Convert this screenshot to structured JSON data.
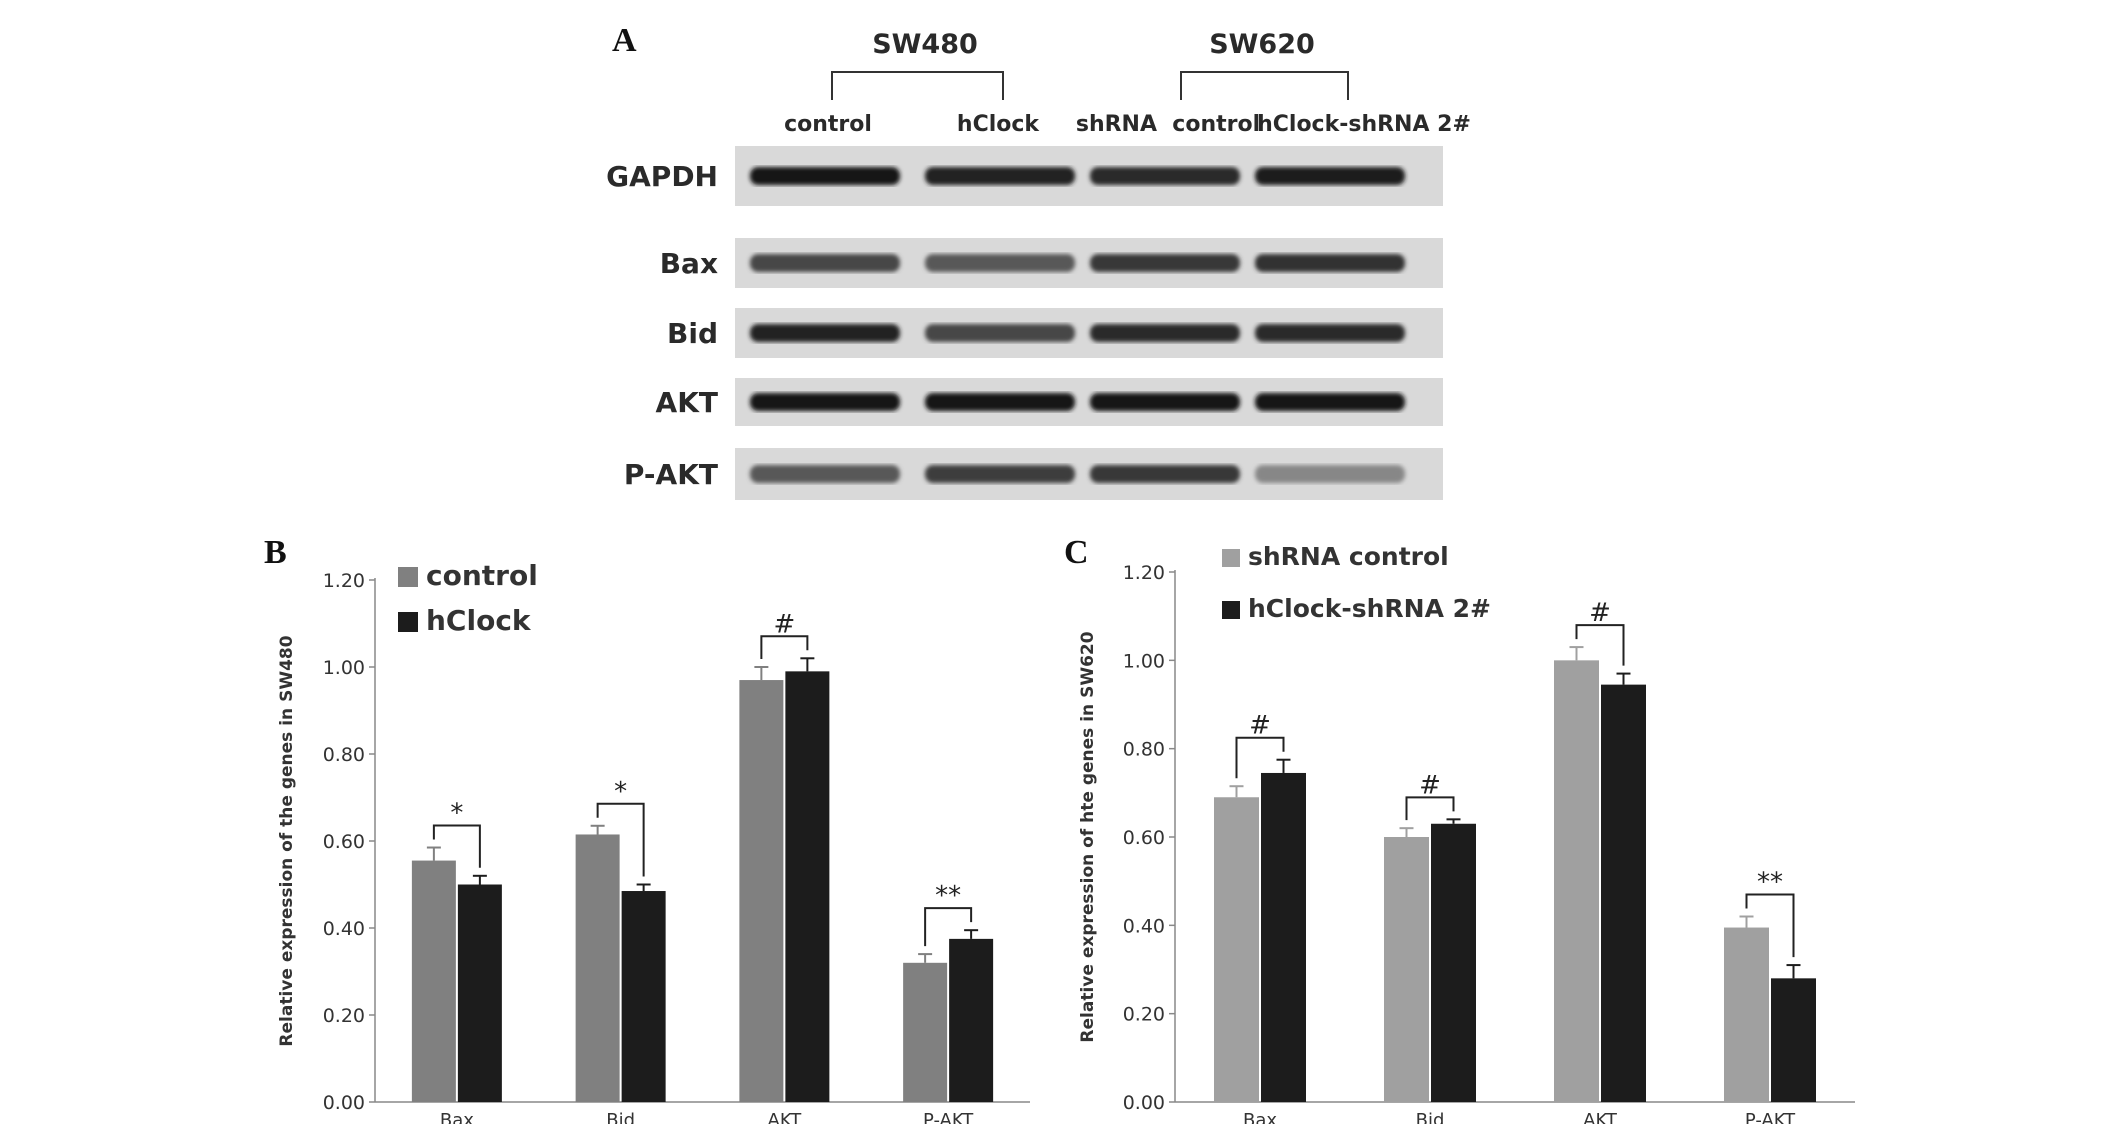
{
  "panel_letters": {
    "a": "A",
    "b": "B",
    "c": "C"
  },
  "blot": {
    "groups": [
      "SW480",
      "SW620"
    ],
    "lanes": [
      "control",
      "hClock",
      "shRNA  control",
      "hClock-shRNA 2#"
    ],
    "rows": [
      {
        "label": "GAPDH",
        "intensity": [
          0.95,
          0.9,
          0.85,
          0.92
        ]
      },
      {
        "label": "Bax",
        "intensity": [
          0.7,
          0.6,
          0.78,
          0.82
        ]
      },
      {
        "label": "Bid",
        "intensity": [
          0.9,
          0.7,
          0.85,
          0.85
        ]
      },
      {
        "label": "AKT",
        "intensity": [
          0.97,
          0.97,
          0.97,
          0.97
        ]
      },
      {
        "label": "P-AKT",
        "intensity": [
          0.6,
          0.75,
          0.78,
          0.35
        ]
      }
    ]
  },
  "chart_data": [
    {
      "type": "bar",
      "categories": [
        "Bax",
        "Bid",
        "AKT",
        "P-AKT"
      ],
      "series": [
        {
          "name": "control",
          "values": [
            0.555,
            0.615,
            0.97,
            0.32
          ],
          "errors": [
            0.03,
            0.02,
            0.03,
            0.02
          ],
          "color": "#808080"
        },
        {
          "name": "hClock",
          "values": [
            0.5,
            0.485,
            0.99,
            0.375
          ],
          "errors": [
            0.02,
            0.015,
            0.03,
            0.02
          ],
          "color": "#1c1c1c"
        }
      ],
      "ylabel": "Relative expression of the genes in SW480",
      "ylim": [
        0,
        1.2
      ],
      "yticks": [
        "0.00",
        "0.20",
        "0.40",
        "0.60",
        "0.80",
        "1.00",
        "1.20"
      ],
      "significance": [
        "*",
        "*",
        "#",
        "**"
      ],
      "legend": "top-left"
    },
    {
      "type": "bar",
      "categories": [
        "Bax",
        "Bid",
        "AKT",
        "P-AKT"
      ],
      "series": [
        {
          "name": "shRNA control",
          "values": [
            0.69,
            0.6,
            1.0,
            0.395
          ],
          "errors": [
            0.025,
            0.02,
            0.03,
            0.025
          ],
          "color": "#a0a0a0"
        },
        {
          "name": "hClock-shRNA 2#",
          "values": [
            0.745,
            0.63,
            0.945,
            0.28
          ],
          "errors": [
            0.03,
            0.01,
            0.025,
            0.03
          ],
          "color": "#1c1c1c"
        }
      ],
      "ylabel": "Relative expression of hte genes in SW620",
      "ylim": [
        0,
        1.2
      ],
      "yticks": [
        "0.00",
        "0.20",
        "0.40",
        "0.60",
        "0.80",
        "1.00",
        "1.20"
      ],
      "significance": [
        "#",
        "#",
        "#",
        "**"
      ],
      "legend": "top-left"
    }
  ]
}
